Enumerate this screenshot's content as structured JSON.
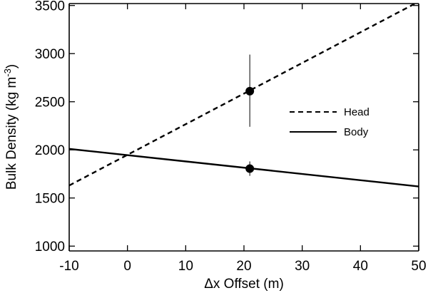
{
  "chart_data": {
    "type": "line",
    "title": "",
    "xlabel": "Δx Offset (m)",
    "ylabel": "Bulk Density (kg m",
    "ylabel_sup": "-3",
    "ylabel_close": ")",
    "xlim": [
      -10,
      50
    ],
    "ylim": [
      950,
      3520
    ],
    "xticks": [
      -10,
      0,
      10,
      20,
      30,
      40,
      50
    ],
    "yticks": [
      1000,
      1500,
      2000,
      2500,
      3000,
      3500
    ],
    "grid": false,
    "legend_position": "right",
    "series": [
      {
        "name": "Head",
        "style": "dashed",
        "x": [
          -10,
          50
        ],
        "y": [
          1630,
          3540
        ],
        "point": {
          "x": 21,
          "y": 2610,
          "err_low": 2240,
          "err_high": 2990
        }
      },
      {
        "name": "Body",
        "style": "solid",
        "x": [
          -10,
          50
        ],
        "y": [
          2010,
          1620
        ],
        "point": {
          "x": 21,
          "y": 1805,
          "err_low": 1730,
          "err_high": 1880
        }
      }
    ],
    "colors": {
      "line": "#000000",
      "background": "#ffffff"
    }
  }
}
